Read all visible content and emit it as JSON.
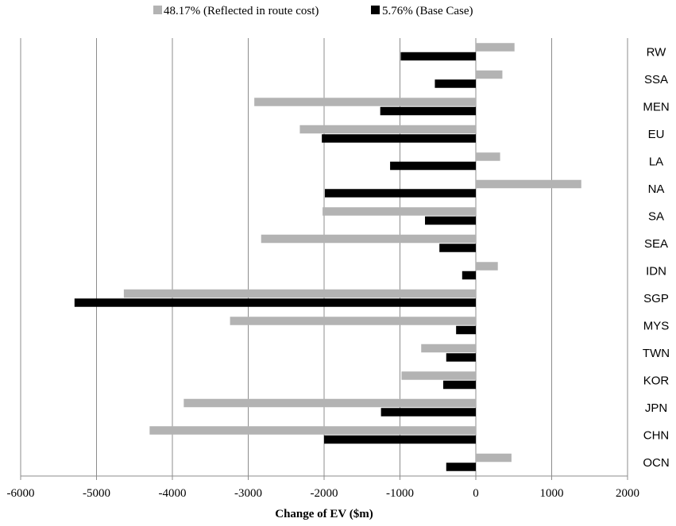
{
  "chart_data": {
    "type": "bar",
    "orientation": "horizontal",
    "categories": [
      "RW",
      "SSA",
      "MEN",
      "EU",
      "LA",
      "NA",
      "SA",
      "SEA",
      "IDN",
      "SGP",
      "MYS",
      "TWN",
      "KOR",
      "JPN",
      "CHN",
      "OCN"
    ],
    "series": [
      {
        "name": "48.17% (Reflected in route cost)",
        "color": "#b3b3b3",
        "values": [
          510,
          350,
          -2920,
          -2320,
          320,
          1390,
          -2020,
          -2830,
          290,
          -4640,
          -3240,
          -720,
          -980,
          -3850,
          -4300,
          470
        ]
      },
      {
        "name": "5.76% (Base Case)",
        "color": "#000000",
        "values": [
          -990,
          -540,
          -1260,
          -2030,
          -1130,
          -1990,
          -670,
          -480,
          -180,
          -5290,
          -260,
          -390,
          -430,
          -1250,
          -2000,
          -390
        ]
      }
    ],
    "xlim": [
      -6000,
      2000
    ],
    "xticks": [
      -6000,
      -5000,
      -4000,
      -3000,
      -2000,
      -1000,
      0,
      1000,
      2000
    ],
    "xlabel": "Change of EV ($m)",
    "ylabel": "",
    "grid": "vertical",
    "legend_position": "top"
  }
}
